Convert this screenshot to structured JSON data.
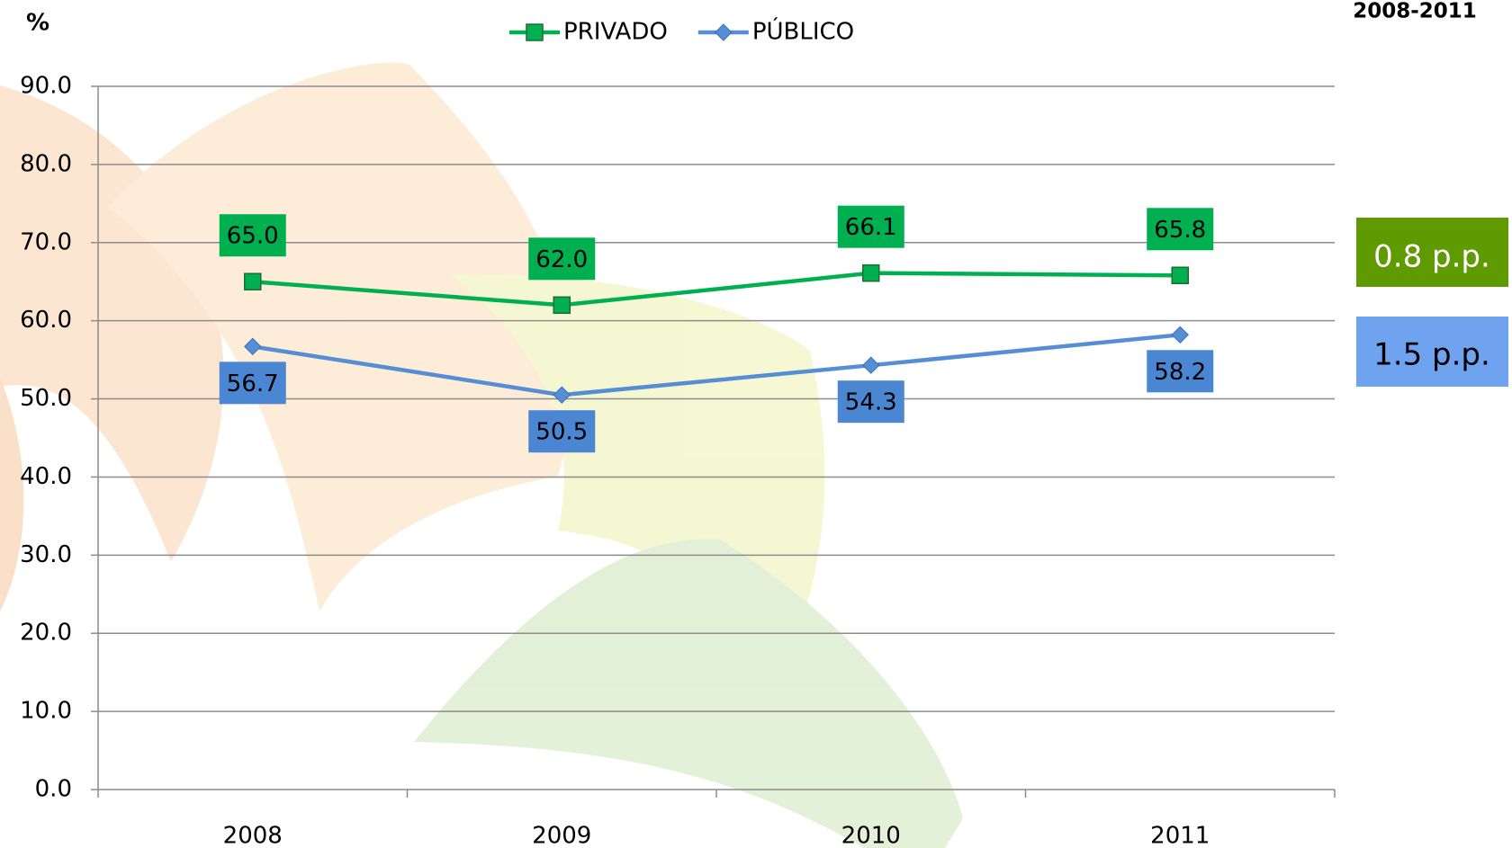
{
  "chart_data": {
    "type": "line",
    "y_label": "%",
    "period": "2008-2011",
    "categories": [
      "2008",
      "2009",
      "2010",
      "2011"
    ],
    "series": [
      {
        "name": "PRIVADO",
        "color": "#00b050",
        "marker": "square",
        "values": [
          65.0,
          62.0,
          66.1,
          65.8
        ],
        "value_labels": [
          "65.0",
          "62.0",
          "66.1",
          "65.8"
        ]
      },
      {
        "name": "PÚBLICO",
        "color": "#558ed5",
        "marker": "diamond",
        "values": [
          56.7,
          50.5,
          54.3,
          58.2
        ],
        "value_labels": [
          "56.7",
          "50.5",
          "54.3",
          "58.2"
        ]
      }
    ],
    "ylim": [
      0,
      90
    ],
    "yticks": [
      {
        "value": 0,
        "label": "0.0"
      },
      {
        "value": 10,
        "label": "10.0"
      },
      {
        "value": 20,
        "label": "20.0"
      },
      {
        "value": 30,
        "label": "30.0"
      },
      {
        "value": 40,
        "label": "40.0"
      },
      {
        "value": 50,
        "label": "50.0"
      },
      {
        "value": 60,
        "label": "60.0"
      },
      {
        "value": 70,
        "label": "70.0"
      },
      {
        "value": 80,
        "label": "80.0"
      },
      {
        "value": 90,
        "label": "90.0"
      }
    ],
    "grid": true,
    "annotations": [
      "0.8 p.p.",
      "1.5 p.p."
    ]
  }
}
